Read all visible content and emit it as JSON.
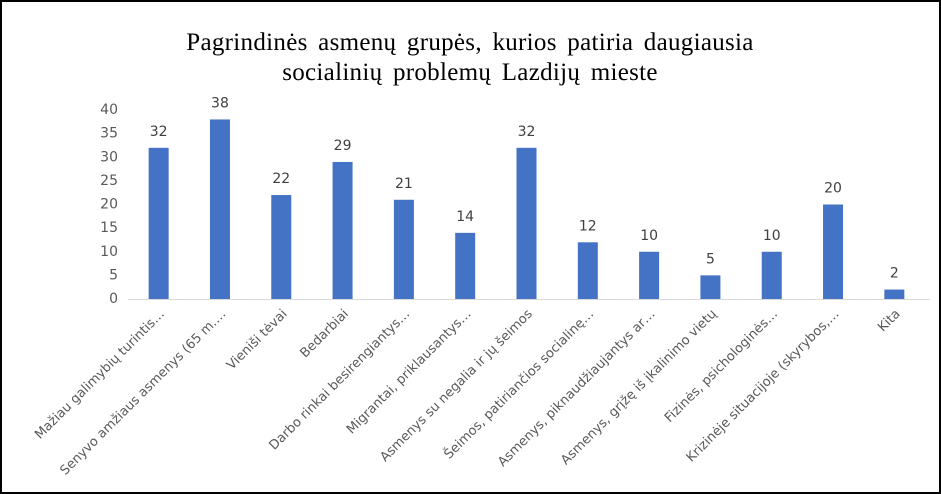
{
  "chart_data": {
    "type": "bar",
    "title": "Pagrindinės asmenų grupės, kurios patiria daugiausia socialinių problemų Lazdijų mieste",
    "categories": [
      "Mažiau galimybių turintis…",
      "Senyvo amžiaus asmenys (65 m.…",
      "Vieniši tėvai",
      "Bedarbiai",
      "Darbo rinkai besirengiantys…",
      "Migrantai, priklausantys…",
      "Asmenys su negalia ir jų šeimos",
      "Šeimos, patiriančios socialinę…",
      "Asmenys, piknaudžiaujantys ar…",
      "Asmenys, grįžę iš įkalinimo vietų",
      "Fizinės, psichologinės…",
      "Krizinėje situacijoje (skyrybos,…",
      "Kita"
    ],
    "values": [
      32,
      38,
      22,
      29,
      21,
      14,
      32,
      12,
      10,
      5,
      10,
      20,
      2
    ],
    "color": "#4472c4",
    "ylim": [
      0,
      40
    ],
    "yticks": [
      0,
      5,
      10,
      15,
      20,
      25,
      30,
      35,
      40
    ],
    "grid": false
  }
}
